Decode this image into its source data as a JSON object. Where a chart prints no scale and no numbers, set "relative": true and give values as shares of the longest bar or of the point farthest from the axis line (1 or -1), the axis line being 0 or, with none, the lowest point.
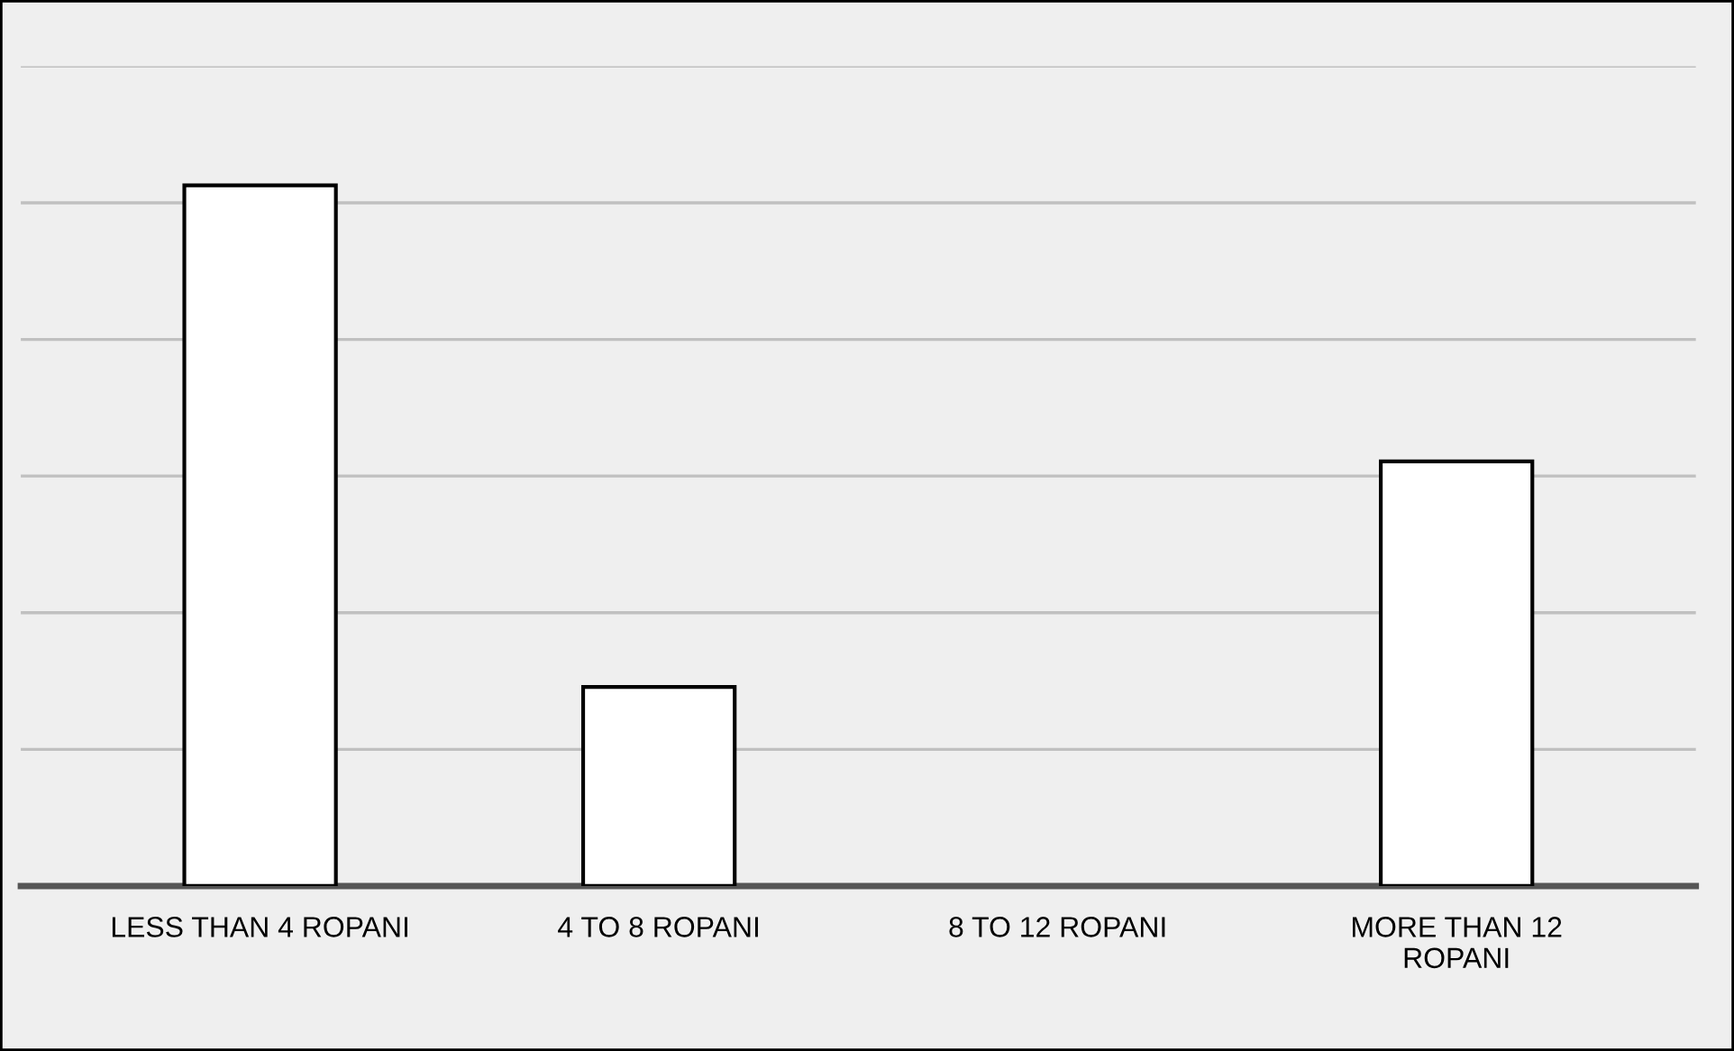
{
  "chart_data": {
    "type": "bar",
    "relative": true,
    "categories": [
      "LESS THAN 4 ROPANI",
      "4 TO 8 ROPANI",
      "8 TO 12 ROPANI",
      "MORE THAN 12\nROPANI"
    ],
    "values": [
      1,
      0.284,
      0,
      0.606
    ],
    "color": "#ffffff",
    "grid": "y",
    "legend": false
  }
}
